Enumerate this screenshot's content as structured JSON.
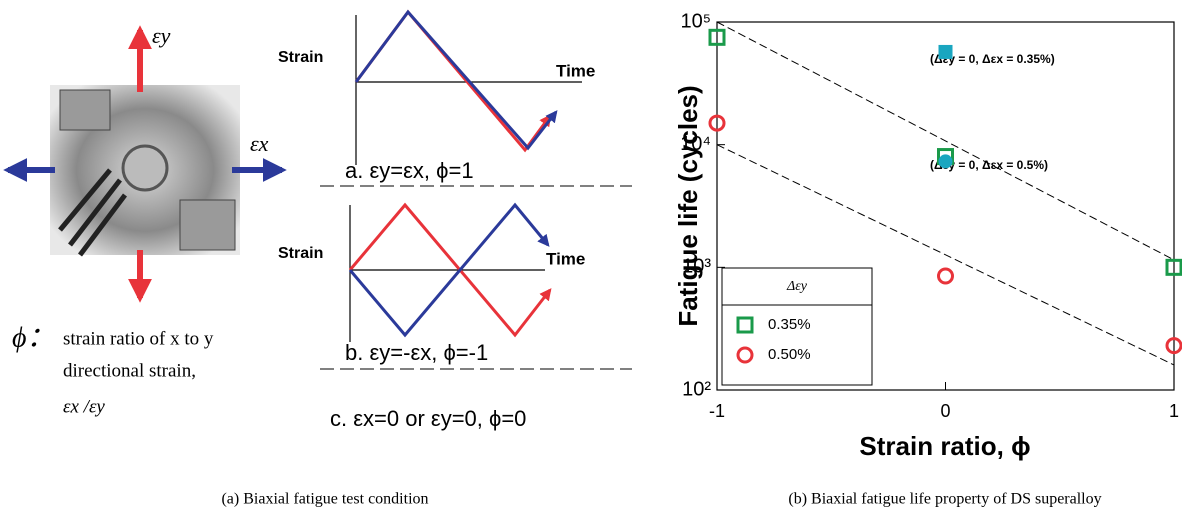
{
  "diagram": {
    "photo_labels": {
      "y": "εy",
      "x": "εx"
    },
    "definition": {
      "symbol": "ϕ：",
      "lines": [
        "strain ratio of x to y",
        "directional strain,",
        "εx /εy"
      ]
    },
    "panel_a": {
      "y_label": "Strain",
      "x_label": "Time",
      "caption": "a. εy=εx, ϕ=1"
    },
    "panel_b": {
      "y_label": "Strain",
      "x_label": "Time",
      "caption": "b. εy=-εx, ϕ=-1"
    },
    "panel_c": {
      "caption": "c. εx=0 or εy=0, ϕ=0"
    }
  },
  "chart_data": {
    "type": "scatter",
    "x_label": "Strain ratio, ϕ",
    "y_label": "Fatigue life (cycles)",
    "xlim": [
      -1,
      1
    ],
    "xticks": [
      -1,
      0,
      1
    ],
    "ylim": [
      100,
      100000
    ],
    "log_y": true,
    "yticks": [
      {
        "value": 100,
        "label": "10²"
      },
      {
        "value": 1000,
        "label": "10³"
      },
      {
        "value": 10000,
        "label": "10⁴"
      },
      {
        "value": 100000,
        "label": "10⁵"
      }
    ],
    "legend_title": "Δεy",
    "legend_position": "lower left",
    "series": [
      {
        "name": "0.35%",
        "color": "#1a9a4a",
        "marker": "square",
        "x": [
          -1,
          0,
          1
        ],
        "values": [
          75000,
          8000,
          1000
        ]
      },
      {
        "name": "0.50%",
        "color": "#e8333a",
        "marker": "circle",
        "x": [
          -1,
          0,
          1
        ],
        "values": [
          15000,
          850,
          230
        ]
      }
    ],
    "annotations": [
      {
        "text": "(Δεy = 0, Δεx = 0.35%)",
        "x": 0,
        "y": 57000,
        "marker": "square",
        "color": "#1aa6c0"
      },
      {
        "text": "(Δεy = 0, Δεx = 0.5%)",
        "x": 0,
        "y": 7300,
        "marker": "circle",
        "color": "#1aa6c0"
      }
    ],
    "fit_lines": [
      {
        "x": [
          -1,
          1
        ],
        "values": [
          100000,
          1150
        ]
      },
      {
        "x": [
          -1,
          1
        ],
        "values": [
          10000,
          160
        ]
      }
    ]
  },
  "captions": [
    "(a) Biaxial fatigue test condition",
    "(b) Biaxial fatigue life property of DS superalloy"
  ]
}
